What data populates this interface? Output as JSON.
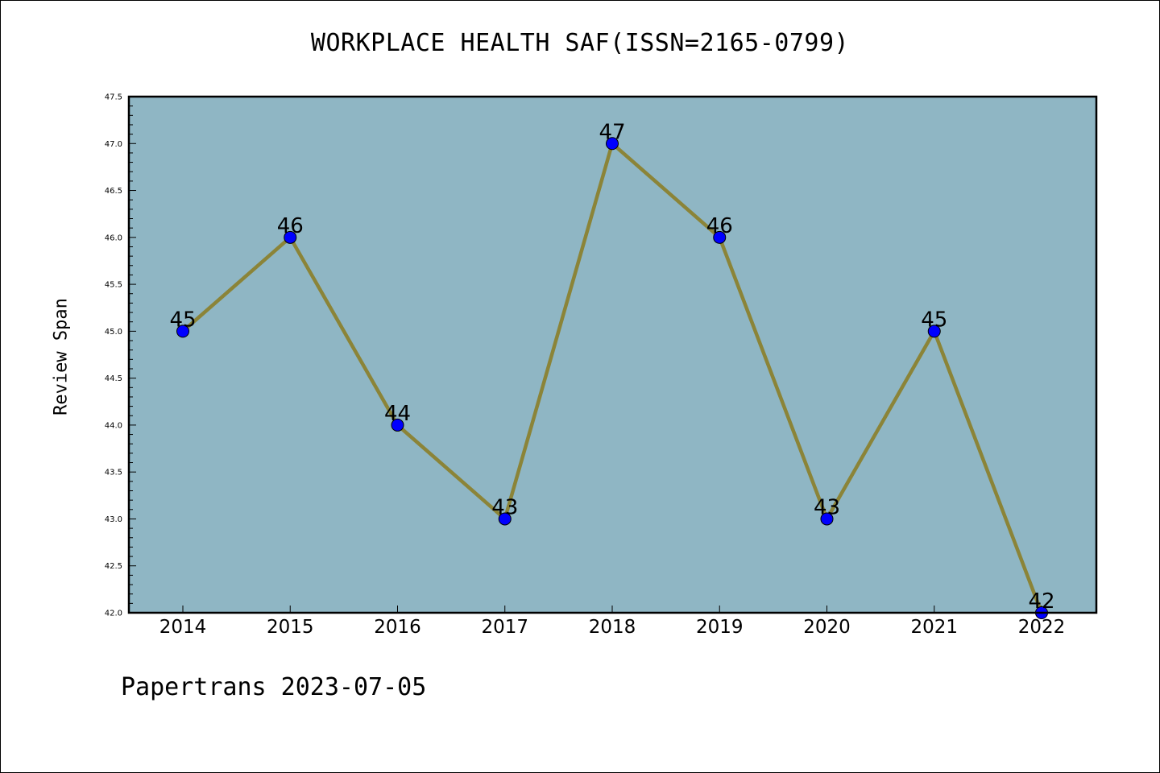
{
  "chart_data": {
    "type": "line",
    "title": "WORKPLACE HEALTH SAF(ISSN=2165-0799)",
    "xlabel": "",
    "ylabel": "Review Span",
    "categories": [
      "2014",
      "2015",
      "2016",
      "2017",
      "2018",
      "2019",
      "2020",
      "2021",
      "2022"
    ],
    "series": [
      {
        "values": [
          45,
          46,
          44,
          43,
          47,
          46,
          43,
          45,
          42
        ],
        "data_labels": [
          "45",
          "46",
          "44",
          "43",
          "47",
          "46",
          "43",
          "45",
          "42"
        ]
      }
    ],
    "ylim": [
      42.0,
      47.5
    ],
    "yticks": [
      "42.0",
      "42.5",
      "43.0",
      "43.5",
      "44.0",
      "44.5",
      "45.0",
      "45.5",
      "46.0",
      "46.5",
      "47.0",
      "47.5"
    ],
    "grid": false,
    "colors": {
      "plot_background": "#8fb6c4",
      "line": "#8b8438",
      "marker": "#0000ff"
    }
  },
  "footer": "Papertrans 2023-07-05"
}
